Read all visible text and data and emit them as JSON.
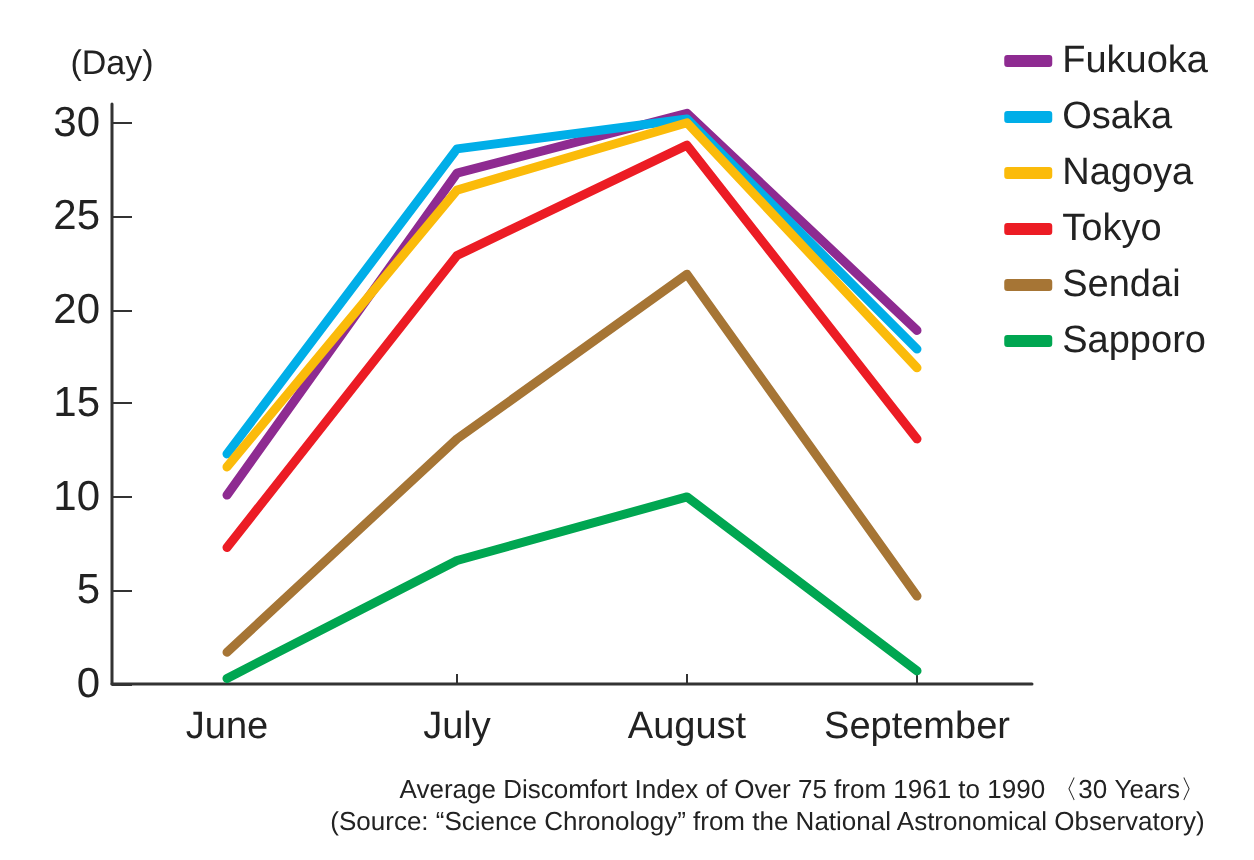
{
  "chart_data": {
    "type": "line",
    "ylabel": "(Day)",
    "categories": [
      "June",
      "July",
      "August",
      "September"
    ],
    "series": [
      {
        "name": "Fukuoka",
        "color": "#8e2b91",
        "values": [
          10.1,
          27.3,
          30.5,
          18.9
        ]
      },
      {
        "name": "Osaka",
        "color": "#00aee8",
        "values": [
          12.3,
          28.6,
          30.2,
          17.9
        ]
      },
      {
        "name": "Nagoya",
        "color": "#fbbb0a",
        "values": [
          11.6,
          26.4,
          30.0,
          16.9
        ]
      },
      {
        "name": "Tokyo",
        "color": "#ec1c24",
        "values": [
          7.3,
          22.9,
          28.8,
          13.1
        ]
      },
      {
        "name": "Sendai",
        "color": "#a67535",
        "values": [
          1.7,
          13.1,
          21.9,
          4.7
        ]
      },
      {
        "name": "Sapporo",
        "color": "#00a651",
        "values": [
          0.3,
          6.6,
          10.0,
          0.7
        ]
      }
    ],
    "ylim": [
      0,
      31
    ],
    "yticks": [
      0,
      5,
      10,
      15,
      20,
      25,
      30
    ],
    "grid": false,
    "legend": "top right",
    "marker": "none",
    "line_style": "solid",
    "annotations": [
      "Average Discomfort Index of Over 75 from 1961 to 1990 〈30 Years〉",
      "(Source: “Science Chronology” from the National Astronomical Observatory)"
    ]
  }
}
